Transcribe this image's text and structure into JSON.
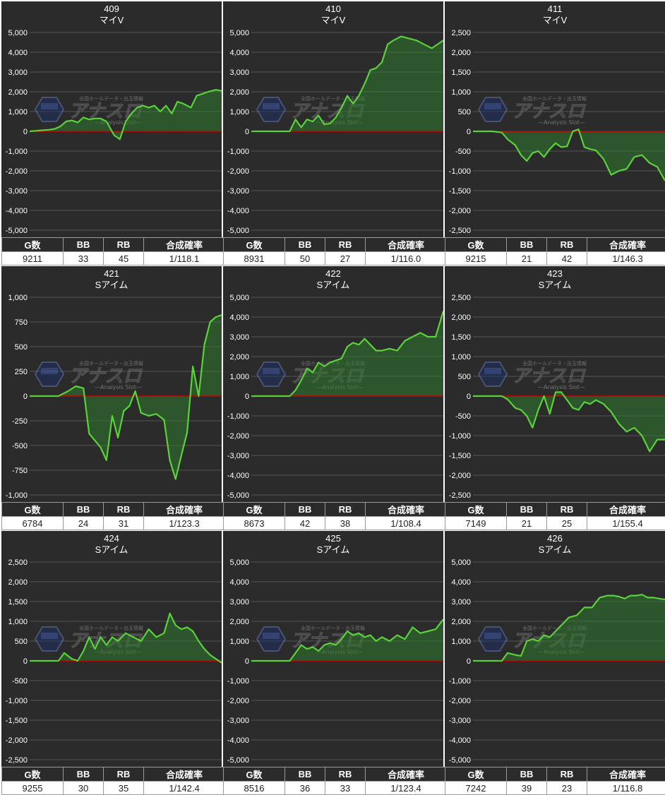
{
  "colors": {
    "panel_bg": "#2b2b2b",
    "grid": "#555555",
    "zero_line": "#cc0000",
    "line": "#5ad13a",
    "fill": "#2f7a2f",
    "text": "#ffffff"
  },
  "stat_headers": [
    "G数",
    "BB",
    "RB",
    "合成確率"
  ],
  "watermark": {
    "logo_text": "アナスロ",
    "sub_text": "—Analysis Slot—",
    "top_text": "全国ホールデータ・出玉情報"
  },
  "chart_data": [
    {
      "type": "area",
      "number": "409",
      "name": "マイV",
      "ylim": [
        -5000,
        5000
      ],
      "ytick_step": 1000,
      "x": [
        0,
        0.03,
        0.06,
        0.1,
        0.13,
        0.16,
        0.19,
        0.22,
        0.25,
        0.28,
        0.31,
        0.34,
        0.37,
        0.4,
        0.44,
        0.47,
        0.5,
        0.53,
        0.56,
        0.59,
        0.62,
        0.65,
        0.68,
        0.71,
        0.74,
        0.77,
        0.8,
        0.84,
        0.87,
        0.9,
        0.93,
        0.97,
        1
      ],
      "y": [
        0,
        20,
        50,
        80,
        120,
        250,
        500,
        550,
        450,
        700,
        600,
        650,
        650,
        500,
        -200,
        -400,
        500,
        900,
        1200,
        1300,
        1200,
        1300,
        1000,
        1300,
        900,
        1500,
        1400,
        1200,
        1800,
        1900,
        2000,
        2100,
        2050
      ],
      "stats": {
        "games": "9211",
        "bb": "33",
        "rb": "45",
        "rate": "1/118.1"
      }
    },
    {
      "type": "area",
      "number": "410",
      "name": "マイV",
      "ylim": [
        -5000,
        5000
      ],
      "ytick_step": 1000,
      "x": [
        0,
        0.05,
        0.1,
        0.15,
        0.2,
        0.23,
        0.26,
        0.29,
        0.32,
        0.35,
        0.38,
        0.41,
        0.44,
        0.47,
        0.5,
        0.53,
        0.56,
        0.59,
        0.62,
        0.65,
        0.68,
        0.71,
        0.74,
        0.78,
        0.82,
        0.86,
        0.9,
        0.94,
        1
      ],
      "y": [
        0,
        0,
        0,
        0,
        0,
        600,
        200,
        600,
        500,
        800,
        350,
        400,
        700,
        1200,
        1800,
        1400,
        1800,
        2400,
        3100,
        3200,
        3500,
        4400,
        4600,
        4800,
        4700,
        4600,
        4400,
        4200,
        4600
      ],
      "stats": {
        "games": "8931",
        "bb": "50",
        "rb": "27",
        "rate": "1/116.0"
      }
    },
    {
      "type": "area",
      "number": "411",
      "name": "マイV",
      "ylim": [
        -2500,
        2500
      ],
      "ytick_step": 500,
      "x": [
        0,
        0.05,
        0.1,
        0.15,
        0.18,
        0.22,
        0.25,
        0.28,
        0.31,
        0.34,
        0.37,
        0.4,
        0.43,
        0.46,
        0.49,
        0.52,
        0.55,
        0.58,
        0.61,
        0.64,
        0.68,
        0.72,
        0.76,
        0.8,
        0.84,
        0.88,
        0.92,
        0.96,
        1
      ],
      "y": [
        0,
        0,
        0,
        -30,
        -200,
        -350,
        -600,
        -750,
        -550,
        -500,
        -650,
        -450,
        -300,
        -400,
        -380,
        0,
        50,
        -400,
        -450,
        -480,
        -700,
        -1100,
        -1000,
        -950,
        -650,
        -600,
        -800,
        -900,
        -1250
      ],
      "stats": {
        "games": "9215",
        "bb": "21",
        "rb": "42",
        "rate": "1/146.3"
      }
    },
    {
      "type": "area",
      "number": "421",
      "name": "Sアイム",
      "ylim": [
        -1000,
        1000
      ],
      "ytick_step": 250,
      "x": [
        0,
        0.05,
        0.1,
        0.15,
        0.2,
        0.24,
        0.28,
        0.31,
        0.34,
        0.37,
        0.4,
        0.43,
        0.46,
        0.49,
        0.52,
        0.55,
        0.58,
        0.62,
        0.66,
        0.7,
        0.73,
        0.76,
        0.79,
        0.82,
        0.85,
        0.88,
        0.91,
        0.94,
        0.97,
        1
      ],
      "y": [
        0,
        0,
        0,
        0,
        50,
        100,
        80,
        -380,
        -450,
        -520,
        -650,
        -200,
        -420,
        -150,
        -100,
        50,
        -170,
        -200,
        -180,
        -240,
        -650,
        -840,
        -600,
        -370,
        300,
        0,
        520,
        750,
        800,
        820
      ],
      "stats": {
        "games": "6784",
        "bb": "24",
        "rb": "31",
        "rate": "1/123.3"
      }
    },
    {
      "type": "area",
      "number": "422",
      "name": "Sアイム",
      "ylim": [
        -5000,
        5000
      ],
      "ytick_step": 1000,
      "x": [
        0,
        0.05,
        0.1,
        0.15,
        0.2,
        0.23,
        0.26,
        0.29,
        0.32,
        0.35,
        0.38,
        0.41,
        0.44,
        0.47,
        0.5,
        0.53,
        0.56,
        0.59,
        0.62,
        0.65,
        0.68,
        0.72,
        0.76,
        0.8,
        0.84,
        0.88,
        0.92,
        0.96,
        1
      ],
      "y": [
        0,
        0,
        0,
        0,
        0,
        300,
        800,
        1400,
        1200,
        1700,
        1500,
        1700,
        1800,
        1900,
        2500,
        2700,
        2600,
        2900,
        2600,
        2300,
        2300,
        2400,
        2300,
        2800,
        3000,
        3200,
        3000,
        3000,
        4300
      ],
      "stats": {
        "games": "8673",
        "bb": "42",
        "rb": "38",
        "rate": "1/108.4"
      }
    },
    {
      "type": "area",
      "number": "423",
      "name": "Sアイム",
      "ylim": [
        -2500,
        2500
      ],
      "ytick_step": 500,
      "x": [
        0,
        0.05,
        0.1,
        0.15,
        0.18,
        0.22,
        0.25,
        0.28,
        0.31,
        0.34,
        0.37,
        0.4,
        0.43,
        0.46,
        0.49,
        0.52,
        0.55,
        0.58,
        0.61,
        0.64,
        0.68,
        0.72,
        0.76,
        0.8,
        0.84,
        0.88,
        0.92,
        0.96,
        1
      ],
      "y": [
        0,
        0,
        0,
        0,
        -80,
        -300,
        -350,
        -500,
        -800,
        -350,
        0,
        -450,
        100,
        100,
        -100,
        -300,
        -350,
        -150,
        -200,
        -100,
        -200,
        -400,
        -700,
        -900,
        -800,
        -1000,
        -1400,
        -1100,
        -1100
      ],
      "stats": {
        "games": "7149",
        "bb": "21",
        "rb": "25",
        "rate": "1/155.4"
      }
    },
    {
      "type": "area",
      "number": "424",
      "name": "Sアイム",
      "ylim": [
        -2500,
        2500
      ],
      "ytick_step": 500,
      "x": [
        0,
        0.05,
        0.1,
        0.15,
        0.18,
        0.22,
        0.25,
        0.28,
        0.31,
        0.34,
        0.37,
        0.4,
        0.43,
        0.46,
        0.5,
        0.54,
        0.58,
        0.62,
        0.66,
        0.7,
        0.73,
        0.76,
        0.79,
        0.82,
        0.85,
        0.88,
        0.91,
        0.94,
        0.97,
        1
      ],
      "y": [
        0,
        0,
        0,
        0,
        200,
        50,
        0,
        250,
        600,
        300,
        600,
        400,
        600,
        500,
        700,
        600,
        500,
        800,
        600,
        700,
        1200,
        900,
        800,
        850,
        750,
        500,
        300,
        150,
        50,
        -50
      ],
      "stats": {
        "games": "9255",
        "bb": "30",
        "rb": "35",
        "rate": "1/142.4"
      }
    },
    {
      "type": "area",
      "number": "425",
      "name": "Sアイム",
      "ylim": [
        -5000,
        5000
      ],
      "ytick_step": 1000,
      "x": [
        0,
        0.05,
        0.1,
        0.15,
        0.2,
        0.23,
        0.26,
        0.29,
        0.32,
        0.35,
        0.38,
        0.41,
        0.44,
        0.47,
        0.5,
        0.53,
        0.56,
        0.59,
        0.62,
        0.65,
        0.68,
        0.72,
        0.76,
        0.8,
        0.84,
        0.88,
        0.92,
        0.96,
        1
      ],
      "y": [
        0,
        0,
        0,
        0,
        0,
        400,
        800,
        600,
        700,
        500,
        800,
        900,
        800,
        1100,
        1500,
        1300,
        1400,
        1200,
        1300,
        1000,
        1200,
        1000,
        1300,
        1100,
        1700,
        1400,
        1500,
        1600,
        2100
      ],
      "stats": {
        "games": "8516",
        "bb": "36",
        "rb": "33",
        "rate": "1/123.4"
      }
    },
    {
      "type": "area",
      "number": "426",
      "name": "Sアイム",
      "ylim": [
        -5000,
        5000
      ],
      "ytick_step": 1000,
      "x": [
        0,
        0.05,
        0.1,
        0.15,
        0.18,
        0.22,
        0.25,
        0.28,
        0.31,
        0.34,
        0.37,
        0.4,
        0.43,
        0.46,
        0.5,
        0.54,
        0.58,
        0.62,
        0.66,
        0.7,
        0.73,
        0.76,
        0.79,
        0.82,
        0.85,
        0.88,
        0.91,
        0.94,
        0.97,
        1
      ],
      "y": [
        0,
        0,
        0,
        0,
        400,
        300,
        250,
        1000,
        1100,
        1000,
        1300,
        1200,
        1500,
        1800,
        2200,
        2300,
        2700,
        2700,
        3200,
        3300,
        3300,
        3250,
        3150,
        3300,
        3300,
        3350,
        3200,
        3200,
        3150,
        3100
      ],
      "stats": {
        "games": "7242",
        "bb": "39",
        "rb": "23",
        "rate": "1/116.8"
      }
    }
  ]
}
